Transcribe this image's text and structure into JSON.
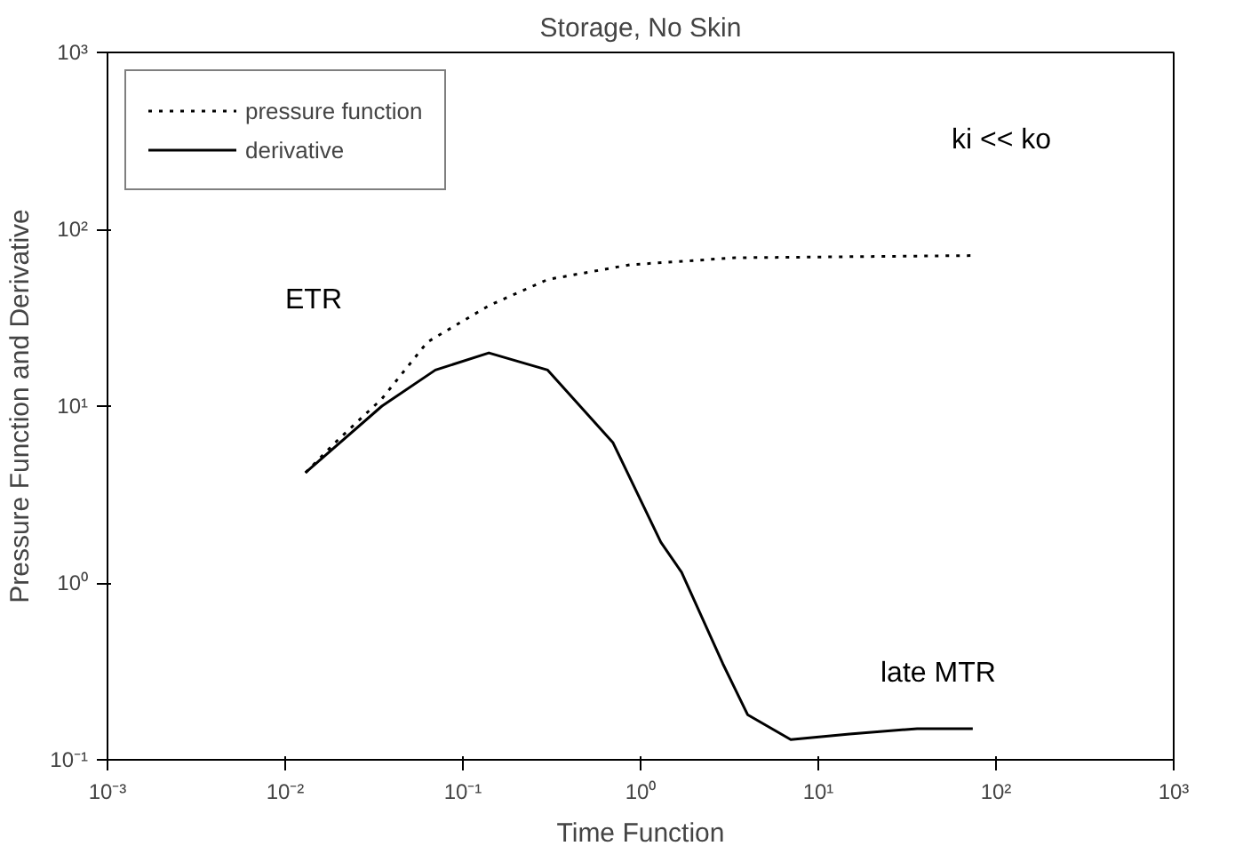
{
  "chart_data": {
    "type": "line",
    "title": "Storage, No Skin",
    "xlabel": "Time Function",
    "ylabel": "Pressure Function and Derivative",
    "log": "xy",
    "grid": false,
    "legend": "top left",
    "marker": "none",
    "xlim": [
      0.001,
      1000
    ],
    "ylim": [
      0.1,
      1000
    ],
    "xticks": [
      {
        "value": 0.001,
        "label": "10⁻³"
      },
      {
        "value": 0.01,
        "label": "10⁻²"
      },
      {
        "value": 0.1,
        "label": "10⁻¹"
      },
      {
        "value": 1,
        "label": "10⁰"
      },
      {
        "value": 10,
        "label": "10¹"
      },
      {
        "value": 100,
        "label": "10²"
      },
      {
        "value": 1000,
        "label": "10³"
      }
    ],
    "yticks": [
      {
        "value": 0.1,
        "label": "10⁻¹"
      },
      {
        "value": 1,
        "label": "10⁰"
      },
      {
        "value": 10,
        "label": "10¹"
      },
      {
        "value": 100,
        "label": "10²"
      },
      {
        "value": 1000,
        "label": "10³"
      }
    ],
    "series": [
      {
        "name": "pressure function",
        "color": "#000000",
        "line_style": "dotted",
        "x": [
          0.013,
          0.02,
          0.035,
          0.063,
          0.14,
          0.3,
          0.87,
          3.4,
          72
        ],
        "values": [
          4.2,
          6.5,
          11,
          23,
          37,
          52,
          63,
          69,
          71
        ]
      },
      {
        "name": "derivative",
        "color": "#000000",
        "line_style": "solid",
        "x": [
          0.013,
          0.035,
          0.07,
          0.14,
          0.3,
          0.7,
          1.3,
          1.7,
          2.9,
          4,
          7,
          15,
          36,
          74
        ],
        "values": [
          4.2,
          10,
          16,
          20,
          16,
          6.2,
          1.7,
          1.15,
          0.35,
          0.18,
          0.13,
          0.14,
          0.15,
          0.15
        ]
      }
    ],
    "annotations": [
      "ETR",
      "ki << ko",
      "late MTR"
    ]
  }
}
